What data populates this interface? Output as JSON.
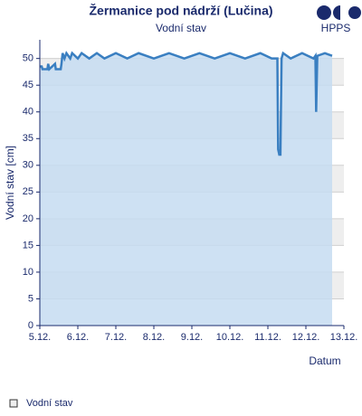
{
  "logo": "HPPS",
  "chart_data": {
    "type": "area",
    "title": "Žermanice pod nádrží (Lučina)",
    "subtitle": "Vodní stav",
    "y_label": "Vodní stav [cm]",
    "x_label": "Datum",
    "xlim": [
      5,
      13
    ],
    "ylim": [
      0,
      53.5
    ],
    "xticks": [
      {
        "value": 5,
        "label": "5.12."
      },
      {
        "value": 6,
        "label": "6.12."
      },
      {
        "value": 7,
        "label": "7.12."
      },
      {
        "value": 8,
        "label": "8.12."
      },
      {
        "value": 9,
        "label": "9.12."
      },
      {
        "value": 10,
        "label": "10.12."
      },
      {
        "value": 11,
        "label": "11.12."
      },
      {
        "value": 12,
        "label": "12.12."
      },
      {
        "value": 13,
        "label": "13.12."
      }
    ],
    "yticks": [
      0,
      5,
      10,
      15,
      20,
      25,
      30,
      35,
      40,
      45,
      50
    ],
    "grid": true,
    "series": [
      {
        "name": "Vodní stav",
        "color": "#3a7fc1",
        "fill": "#c6dcf1",
        "x": [
          5.0,
          5.05,
          5.07,
          5.2,
          5.22,
          5.25,
          5.4,
          5.42,
          5.55,
          5.57,
          5.6,
          5.65,
          5.7,
          5.8,
          5.85,
          6.0,
          6.1,
          6.3,
          6.5,
          6.7,
          7.0,
          7.3,
          7.6,
          8.0,
          8.4,
          8.8,
          9.2,
          9.6,
          10.0,
          10.4,
          10.8,
          11.1,
          11.25,
          11.27,
          11.3,
          11.33,
          11.36,
          11.4,
          11.6,
          11.9,
          12.2,
          12.25,
          12.27,
          12.3,
          12.5,
          12.69
        ],
        "values": [
          48.5,
          48.5,
          48,
          48,
          49,
          48,
          49,
          48,
          48,
          49,
          51,
          50,
          51,
          50,
          51,
          50,
          51,
          50,
          51,
          50,
          51,
          50,
          51,
          50,
          51,
          50,
          51,
          50,
          51,
          50,
          51,
          50,
          50,
          33,
          32,
          32,
          50,
          51,
          50,
          51,
          50,
          50.5,
          40,
          50.5,
          51,
          50.5
        ]
      }
    ],
    "legend": "bottom-left"
  }
}
